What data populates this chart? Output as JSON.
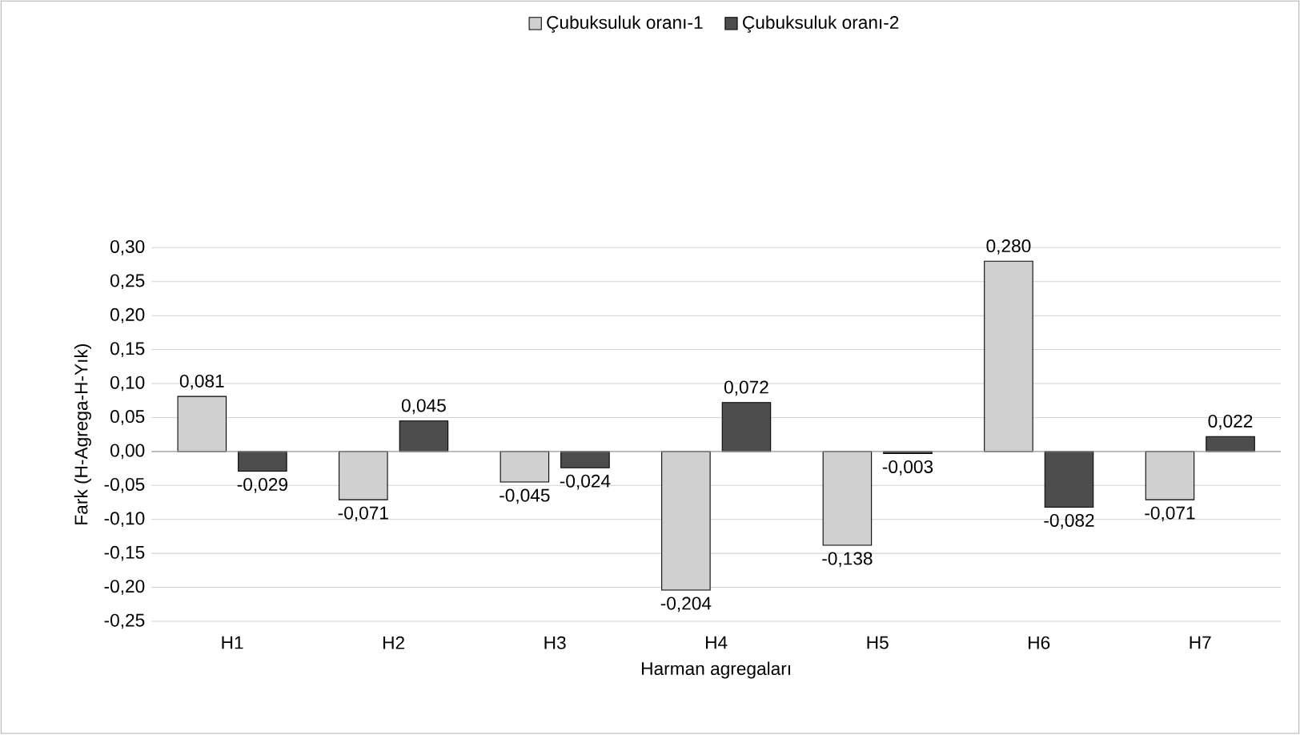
{
  "chart_data": {
    "type": "bar",
    "xlabel": "Harman agregaları",
    "ylabel": "Fark (H-Agrega-H-Yık)",
    "categories": [
      "H1",
      "H2",
      "H3",
      "H4",
      "H5",
      "H6",
      "H7"
    ],
    "series": [
      {
        "name": "Çubuksuluk oranı-1",
        "color": "#d0d0d0",
        "values": [
          0.081,
          -0.071,
          -0.045,
          -0.204,
          -0.138,
          0.28,
          -0.071
        ],
        "value_labels": [
          "0,081",
          "-0,071",
          "-0,045",
          "-0,204",
          "-0,138",
          "0,280",
          "-0,071"
        ]
      },
      {
        "name": "Çubuksuluk oranı-2",
        "color": "#4d4d4d",
        "values": [
          -0.029,
          0.045,
          -0.024,
          0.072,
          -0.003,
          -0.082,
          0.022
        ],
        "value_labels": [
          "-0,029",
          "0,045",
          "-0,024",
          "0,072",
          "-0,003",
          "-0,082",
          "0,022"
        ]
      }
    ],
    "ylim": [
      -0.25,
      0.3
    ],
    "yticks": [
      {
        "value": -0.25,
        "label": "-0,25"
      },
      {
        "value": -0.2,
        "label": "-0,20"
      },
      {
        "value": -0.15,
        "label": "-0,15"
      },
      {
        "value": -0.1,
        "label": "-0,10"
      },
      {
        "value": -0.05,
        "label": "-0,05"
      },
      {
        "value": 0,
        "label": "0,00"
      },
      {
        "value": 0.05,
        "label": "0,05"
      },
      {
        "value": 0.1,
        "label": "0,10"
      },
      {
        "value": 0.15,
        "label": "0,15"
      },
      {
        "value": 0.2,
        "label": "0,20"
      },
      {
        "value": 0.25,
        "label": "0,25"
      },
      {
        "value": 0.3,
        "label": "0,30"
      }
    ],
    "grid": "y",
    "legend": "top"
  }
}
